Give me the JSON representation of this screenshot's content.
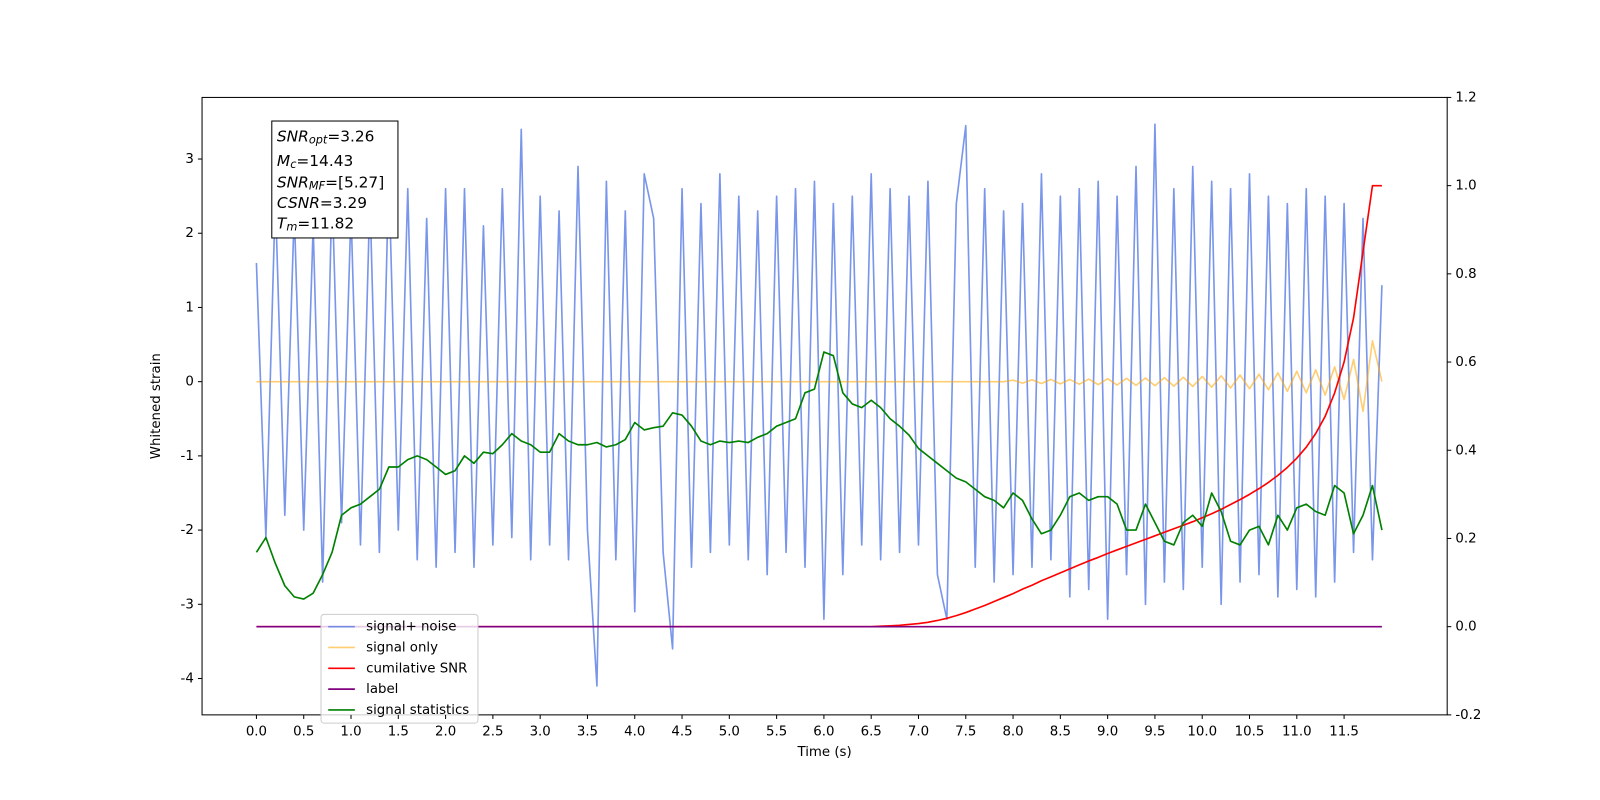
{
  "chart_data": {
    "type": "line",
    "xlabel": "Time (s)",
    "ylabel": "Whitened strain",
    "xlim": [
      -0.575,
      12.59
    ],
    "ylim": [
      -4.49,
      3.83
    ],
    "y2lim": [
      -0.2,
      1.2
    ],
    "xticks": [
      {
        "value": 0,
        "label": "0.0"
      },
      0.5,
      {
        "value": 1,
        "label": "1.0"
      },
      1.5,
      {
        "value": 2,
        "label": "2.0"
      },
      2.5,
      {
        "value": 3,
        "label": "3.0"
      },
      3.5,
      {
        "value": 4,
        "label": "4.0"
      },
      4.5,
      {
        "value": 5,
        "label": "5.0"
      },
      5.5,
      {
        "value": 6,
        "label": "6.0"
      },
      6.5,
      {
        "value": 7,
        "label": "7.0"
      },
      7.5,
      {
        "value": 8,
        "label": "8.0"
      },
      8.5,
      {
        "value": 9,
        "label": "9.0"
      },
      9.5,
      {
        "value": 10,
        "label": "10.0"
      },
      10.5,
      {
        "value": 11,
        "label": "11.0"
      },
      11.5
    ],
    "yticks": [
      -4,
      -3,
      -2,
      -1,
      0,
      1,
      2,
      3
    ],
    "y2ticks": [
      -0.2,
      {
        "value": 0,
        "label": "0.0"
      },
      0.2,
      0.4,
      0.6,
      0.8,
      {
        "value": 1,
        "label": "1.0"
      },
      1.2
    ],
    "legend": "lower left",
    "annotation": [
      {
        "symbol": "SNR",
        "subscript": "opt",
        "text": "=3.26"
      },
      {
        "symbol": "M",
        "subscript": "c",
        "text": "=14.43"
      },
      {
        "symbol": "SNR",
        "subscript": "MF",
        "text": "=[5.27]"
      },
      {
        "symbol": "CSNR",
        "text": "=3.29"
      },
      {
        "symbol": "T",
        "subscript": "m",
        "text": "=11.82"
      }
    ],
    "x": [
      0,
      0.1,
      0.2,
      0.3,
      0.4,
      0.5,
      0.6,
      0.7,
      0.8,
      0.9,
      1,
      1.1,
      1.2,
      1.3,
      1.4,
      1.5,
      1.6,
      1.7,
      1.8,
      1.9,
      2,
      2.1,
      2.2,
      2.3,
      2.4,
      2.5,
      2.6,
      2.7,
      2.8,
      2.9,
      3,
      3.1,
      3.2,
      3.3,
      3.4,
      3.5,
      3.6,
      3.7,
      3.8,
      3.9,
      4,
      4.1,
      4.2,
      4.3,
      4.4,
      4.5,
      4.6,
      4.7,
      4.8,
      4.9,
      5,
      5.1,
      5.2,
      5.3,
      5.4,
      5.5,
      5.6,
      5.7,
      5.8,
      5.9,
      6,
      6.1,
      6.2,
      6.3,
      6.4,
      6.5,
      6.6,
      6.7,
      6.8,
      6.9,
      7,
      7.1,
      7.2,
      7.3,
      7.4,
      7.5,
      7.6,
      7.7,
      7.8,
      7.9,
      8,
      8.1,
      8.2,
      8.3,
      8.4,
      8.5,
      8.6,
      8.7,
      8.8,
      8.9,
      9,
      9.1,
      9.2,
      9.3,
      9.4,
      9.5,
      9.6,
      9.7,
      9.8,
      9.9,
      10,
      10.1,
      10.2,
      10.3,
      10.4,
      10.5,
      10.6,
      10.7,
      10.8,
      10.9,
      11,
      11.1,
      11.2,
      11.3,
      11.4,
      11.5,
      11.6,
      11.7,
      11.8,
      11.9
    ],
    "series": [
      {
        "name": "signal+ noise",
        "color": "#4169e1",
        "alpha": 0.7,
        "values": [
          1.6,
          -2.1,
          2.5,
          -1.8,
          2.3,
          -2.0,
          2.1,
          -2.7,
          2.6,
          -1.9,
          2.3,
          -2.2,
          2.5,
          -2.3,
          2.8,
          -2.0,
          2.6,
          -2.4,
          2.2,
          -2.5,
          2.6,
          -2.3,
          2.6,
          -2.5,
          2.1,
          -2.2,
          2.6,
          -2.1,
          3.4,
          -2.4,
          2.5,
          -2.2,
          2.3,
          -2.4,
          2.9,
          -2.0,
          -4.1,
          2.7,
          -2.4,
          2.3,
          -3.1,
          2.8,
          2.2,
          -2.3,
          -3.6,
          2.6,
          -2.5,
          2.4,
          -2.3,
          2.8,
          -2.2,
          2.5,
          -2.4,
          2.3,
          -2.6,
          2.5,
          -2.3,
          2.6,
          -2.5,
          2.7,
          -3.2,
          2.4,
          -2.6,
          2.5,
          -2.2,
          2.8,
          -2.4,
          2.6,
          -2.3,
          2.5,
          -2.2,
          2.7,
          -2.6,
          -3.2,
          2.4,
          3.45,
          -2.5,
          2.6,
          -2.7,
          2.3,
          -2.6,
          2.4,
          -2.5,
          2.8,
          -2.4,
          2.5,
          -2.9,
          2.6,
          -2.8,
          2.7,
          -3.2,
          2.5,
          -2.6,
          2.9,
          -3.0,
          3.47,
          -2.7,
          2.6,
          -2.8,
          2.9,
          -2.5,
          2.7,
          -3.0,
          2.6,
          -2.7,
          2.8,
          -2.6,
          2.5,
          -2.9,
          2.4,
          -2.8,
          2.6,
          -2.9,
          2.5,
          -2.7,
          2.4,
          -2.3,
          2.2,
          -2.4,
          1.3
        ]
      },
      {
        "name": "signal only",
        "color": "#ffa500",
        "alpha": 0.55,
        "values": [
          0,
          0,
          0,
          0,
          0,
          0,
          0,
          0,
          0,
          0,
          0,
          0,
          0,
          0,
          0,
          0,
          0,
          0,
          0,
          0,
          0,
          0,
          0,
          0,
          0,
          0,
          0,
          0,
          0,
          0,
          0,
          0,
          0,
          0,
          0,
          0,
          0,
          0,
          0,
          0,
          0,
          0,
          0,
          0,
          0,
          0,
          0,
          0,
          0,
          0,
          0,
          0,
          0,
          0,
          0,
          0,
          0,
          0,
          0,
          0,
          0,
          0,
          0,
          0,
          0,
          0,
          0,
          0,
          0,
          0,
          0,
          0,
          0,
          0,
          0,
          0,
          0,
          0,
          0,
          0,
          0.02,
          -0.02,
          0.025,
          -0.025,
          0.03,
          -0.03,
          0.03,
          -0.035,
          0.035,
          -0.04,
          0.04,
          -0.045,
          0.045,
          -0.05,
          0.05,
          -0.055,
          0.055,
          -0.06,
          0.06,
          -0.065,
          0.07,
          -0.075,
          0.08,
          -0.085,
          0.09,
          -0.095,
          0.1,
          -0.11,
          0.12,
          -0.13,
          0.14,
          -0.15,
          0.16,
          -0.18,
          0.2,
          -0.24,
          0.3,
          -0.4,
          0.55,
          0
        ]
      },
      {
        "name": "cumilative SNR",
        "color": "#ff0000",
        "alpha": 1,
        "axis": "y2",
        "values": [
          0,
          0,
          0,
          0,
          0,
          0,
          0,
          0,
          0,
          0,
          0,
          0,
          0,
          0,
          0,
          0,
          0,
          0,
          0,
          0,
          0,
          0,
          0,
          0,
          0,
          0,
          0,
          0,
          0,
          0,
          0,
          0,
          0,
          0,
          0,
          0,
          0,
          0,
          0,
          0,
          0,
          0,
          0,
          0,
          0,
          0,
          0,
          0,
          0,
          0,
          0,
          0,
          0,
          0,
          0,
          0,
          0,
          0,
          0,
          0,
          0,
          0,
          0,
          0,
          0,
          0,
          0.001,
          0.002,
          0.003,
          0.005,
          0.007,
          0.01,
          0.014,
          0.019,
          0.025,
          0.032,
          0.04,
          0.048,
          0.057,
          0.066,
          0.075,
          0.085,
          0.094,
          0.104,
          0.113,
          0.122,
          0.131,
          0.14,
          0.149,
          0.157,
          0.166,
          0.174,
          0.182,
          0.19,
          0.198,
          0.206,
          0.214,
          0.222,
          0.23,
          0.238,
          0.247,
          0.256,
          0.266,
          0.277,
          0.288,
          0.3,
          0.313,
          0.327,
          0.343,
          0.361,
          0.382,
          0.407,
          0.438,
          0.477,
          0.53,
          0.6,
          0.7,
          0.85,
          1.0,
          1.0
        ]
      },
      {
        "name": "label",
        "color": "#800080",
        "alpha": 1,
        "axis": "y2",
        "values": [
          0,
          0,
          0,
          0,
          0,
          0,
          0,
          0,
          0,
          0,
          0,
          0,
          0,
          0,
          0,
          0,
          0,
          0,
          0,
          0,
          0,
          0,
          0,
          0,
          0,
          0,
          0,
          0,
          0,
          0,
          0,
          0,
          0,
          0,
          0,
          0,
          0,
          0,
          0,
          0,
          0,
          0,
          0,
          0,
          0,
          0,
          0,
          0,
          0,
          0,
          0,
          0,
          0,
          0,
          0,
          0,
          0,
          0,
          0,
          0,
          0,
          0,
          0,
          0,
          0,
          0,
          0,
          0,
          0,
          0,
          0,
          0,
          0,
          0,
          0,
          0,
          0,
          0,
          0,
          0,
          0,
          0,
          0,
          0,
          0,
          0,
          0,
          0,
          0,
          0,
          0,
          0,
          0,
          0,
          0,
          0,
          0,
          0,
          0,
          0,
          0,
          0,
          0,
          0,
          0,
          0,
          0,
          0,
          0,
          0,
          0,
          0,
          0,
          0,
          0,
          0,
          0,
          0,
          0,
          0
        ]
      },
      {
        "name": "signal statistics",
        "color": "#008000",
        "alpha": 1,
        "values": [
          -2.3,
          -2.1,
          -2.45,
          -2.75,
          -2.9,
          -2.93,
          -2.85,
          -2.6,
          -2.3,
          -1.8,
          -1.7,
          -1.65,
          -1.55,
          -1.45,
          -1.15,
          -1.15,
          -1.05,
          -1.0,
          -1.05,
          -1.15,
          -1.25,
          -1.2,
          -1.0,
          -1.1,
          -0.95,
          -0.97,
          -0.85,
          -0.7,
          -0.8,
          -0.85,
          -0.95,
          -0.95,
          -0.7,
          -0.8,
          -0.85,
          -0.85,
          -0.82,
          -0.88,
          -0.85,
          -0.78,
          -0.55,
          -0.65,
          -0.62,
          -0.6,
          -0.42,
          -0.45,
          -0.6,
          -0.8,
          -0.85,
          -0.8,
          -0.82,
          -0.8,
          -0.82,
          -0.75,
          -0.7,
          -0.6,
          -0.55,
          -0.5,
          -0.15,
          -0.1,
          0.4,
          0.35,
          -0.15,
          -0.3,
          -0.35,
          -0.25,
          -0.35,
          -0.5,
          -0.6,
          -0.72,
          -0.9,
          -1.0,
          -1.1,
          -1.2,
          -1.3,
          -1.35,
          -1.45,
          -1.55,
          -1.6,
          -1.7,
          -1.5,
          -1.6,
          -1.85,
          -2.05,
          -2.0,
          -1.8,
          -1.55,
          -1.5,
          -1.6,
          -1.55,
          -1.55,
          -1.65,
          -2.0,
          -2.0,
          -1.65,
          -1.9,
          -2.15,
          -2.2,
          -1.9,
          -1.8,
          -1.95,
          -1.5,
          -1.75,
          -2.15,
          -2.2,
          -2.0,
          -1.95,
          -2.2,
          -1.8,
          -2.0,
          -1.7,
          -1.65,
          -1.75,
          -1.8,
          -1.4,
          -1.5,
          -2.05,
          -1.8,
          -1.4,
          -2.0
        ]
      }
    ]
  }
}
